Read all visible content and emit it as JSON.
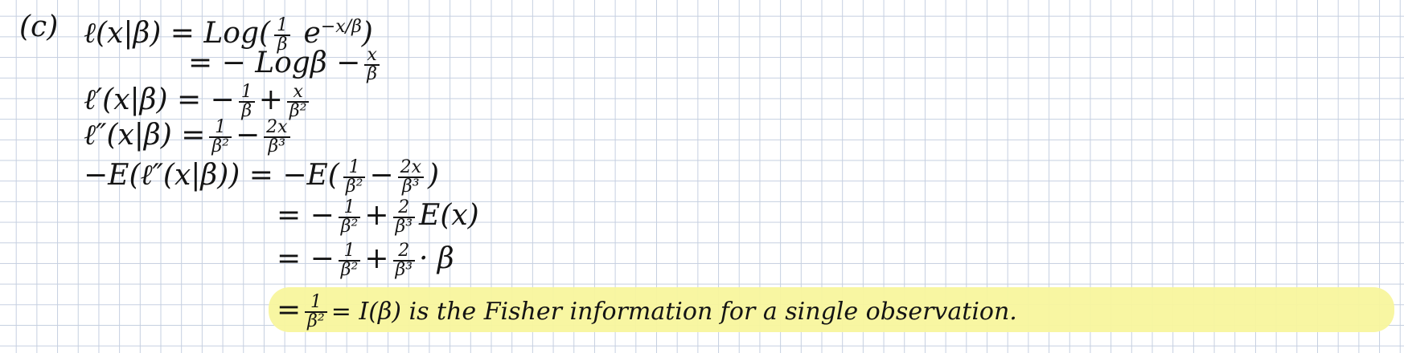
{
  "part_label": "(c)",
  "lines": {
    "l1_lhs": "ℓ(x|β) = Log(",
    "l1_num": "1",
    "l1_den": "β",
    "l1_e": " e",
    "l1_exp": "−x/β",
    "l1_close": ")",
    "l2_text": "= − Logβ −",
    "l2_num": "x",
    "l2_den": "β",
    "l3_lhs": "ℓ′(x|β) = −",
    "l3_n1": "1",
    "l3_d1": "β",
    "l3_plus": "+",
    "l3_n2": "x",
    "l3_d2": "β²",
    "l4_lhs": "ℓ″(x|β) =",
    "l4_n1": "1",
    "l4_d1": "β²",
    "l4_minus": "−",
    "l4_n2": "2x",
    "l4_d2": "β³",
    "l5_lhs": "−E(ℓ″(x|β)) = −E(",
    "l5_n1": "1",
    "l5_d1": "β²",
    "l5_minus": "−",
    "l5_n2": "2x",
    "l5_d2": "β³",
    "l5_close": ")",
    "l6_eq": "= −",
    "l6_n1": "1",
    "l6_d1": "β²",
    "l6_plus": "+",
    "l6_n2": "2",
    "l6_d2": "β³",
    "l6_tail": "E(x)",
    "l7_eq": "= −",
    "l7_n1": "1",
    "l7_d1": "β²",
    "l7_plus": "+",
    "l7_n2": "2",
    "l7_d2": "β³",
    "l7_tail": "· β",
    "l8_eq": "=",
    "l8_n1": "1",
    "l8_d1": "β²",
    "l8_rest": "= I(β)   is the Fisher information for a single observation."
  },
  "highlight_color": "#f8f59d"
}
